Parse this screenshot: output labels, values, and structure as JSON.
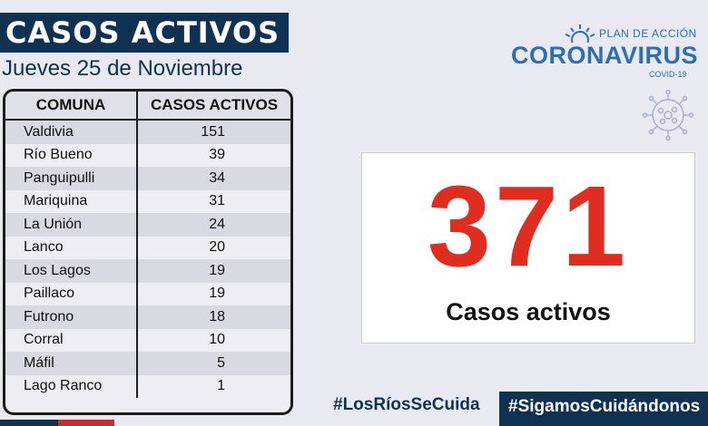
{
  "header": {
    "title": "CASOS ACTIVOS",
    "date": "Jueves 25 de Noviembre"
  },
  "table": {
    "col_comuna": "COMUNA",
    "col_casos": "CASOS ACTIVOS",
    "rows": [
      {
        "comuna": "Valdivia",
        "casos": "151"
      },
      {
        "comuna": "Río Bueno",
        "casos": "39"
      },
      {
        "comuna": "Panguipulli",
        "casos": "34"
      },
      {
        "comuna": "Mariquina",
        "casos": "31"
      },
      {
        "comuna": "La Unión",
        "casos": "24"
      },
      {
        "comuna": "Lanco",
        "casos": "20"
      },
      {
        "comuna": "Los Lagos",
        "casos": "19"
      },
      {
        "comuna": "Paillaco",
        "casos": "19"
      },
      {
        "comuna": "Futrono",
        "casos": "18"
      },
      {
        "comuna": "Corral",
        "casos": "10"
      },
      {
        "comuna": "Máfil",
        "casos": "5"
      },
      {
        "comuna": "Lago Ranco",
        "casos": "1"
      }
    ]
  },
  "logo": {
    "plan": "PLAN DE ACCIÓN",
    "main": "CORONAVIRUS",
    "sub": "COVID-19"
  },
  "summary": {
    "total": "371",
    "label": "Casos activos"
  },
  "footer": {
    "hashtag1": "#LosRíosSeCuida",
    "hashtag2": "#SigamosCuidándonos"
  },
  "colors": {
    "navy": "#0f3253",
    "red": "#e02d1f",
    "logo_blue": "#2e6fb0"
  }
}
